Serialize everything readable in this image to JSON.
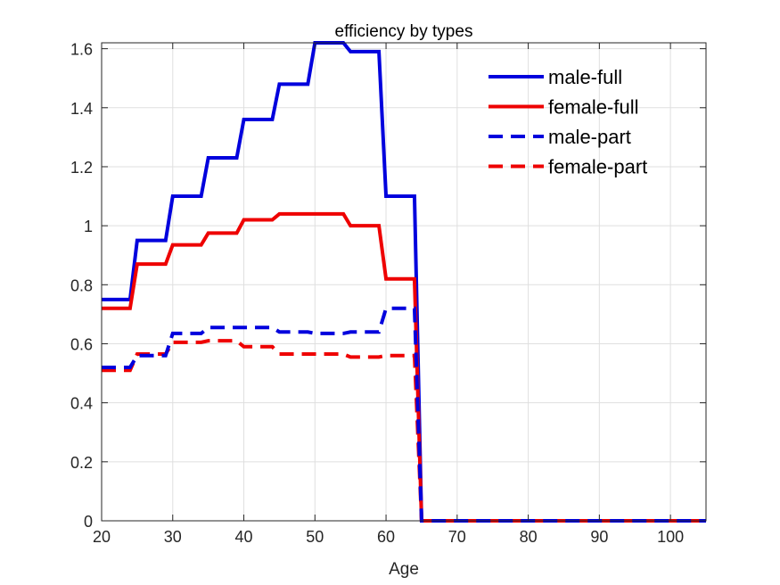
{
  "chart_data": {
    "type": "line",
    "title": "efficiency by types",
    "xlabel": "Age",
    "ylabel": "",
    "xlim": [
      20,
      105
    ],
    "ylim": [
      0,
      1.62
    ],
    "xticks": [
      20,
      30,
      40,
      50,
      60,
      70,
      80,
      90,
      100
    ],
    "yticks": [
      0,
      0.2,
      0.4,
      0.6,
      0.8,
      1.0,
      1.2,
      1.4,
      1.6
    ],
    "ytick_labels": [
      "0",
      "0.2",
      "0.4",
      "0.6",
      "0.8",
      "1",
      "1.2",
      "1.4",
      "1.6"
    ],
    "grid": true,
    "legend_position": "top-right",
    "series": [
      {
        "name": "male-full",
        "color": "#0000dd",
        "dash": "solid",
        "x": [
          20,
          24,
          25,
          29,
          30,
          34,
          35,
          39,
          40,
          44,
          45,
          49,
          50,
          54,
          55,
          59,
          60,
          64,
          65,
          105
        ],
        "y": [
          0.75,
          0.75,
          0.95,
          0.95,
          1.1,
          1.1,
          1.23,
          1.23,
          1.36,
          1.36,
          1.48,
          1.48,
          1.62,
          1.62,
          1.59,
          1.59,
          1.1,
          1.1,
          0,
          0
        ]
      },
      {
        "name": "female-full",
        "color": "#ee0000",
        "dash": "solid",
        "x": [
          20,
          24,
          25,
          29,
          30,
          34,
          35,
          39,
          40,
          44,
          45,
          49,
          50,
          54,
          55,
          59,
          60,
          64,
          65,
          105
        ],
        "y": [
          0.72,
          0.72,
          0.87,
          0.87,
          0.935,
          0.935,
          0.975,
          0.975,
          1.02,
          1.02,
          1.04,
          1.04,
          1.04,
          1.04,
          1.0,
          1.0,
          0.82,
          0.82,
          0,
          0
        ]
      },
      {
        "name": "male-part",
        "color": "#0000dd",
        "dash": "dashed",
        "x": [
          20,
          24,
          25,
          29,
          30,
          34,
          35,
          39,
          40,
          44,
          45,
          49,
          50,
          54,
          55,
          59,
          60,
          64,
          65,
          105
        ],
        "y": [
          0.52,
          0.52,
          0.56,
          0.56,
          0.635,
          0.635,
          0.655,
          0.655,
          0.655,
          0.655,
          0.64,
          0.64,
          0.635,
          0.635,
          0.64,
          0.64,
          0.72,
          0.72,
          0,
          0
        ]
      },
      {
        "name": "female-part",
        "color": "#ee0000",
        "dash": "dashed",
        "x": [
          20,
          24,
          25,
          29,
          30,
          34,
          35,
          39,
          40,
          44,
          45,
          49,
          50,
          54,
          55,
          59,
          60,
          64,
          65,
          105
        ],
        "y": [
          0.51,
          0.51,
          0.565,
          0.565,
          0.605,
          0.605,
          0.61,
          0.61,
          0.59,
          0.59,
          0.565,
          0.565,
          0.565,
          0.565,
          0.555,
          0.555,
          0.56,
          0.56,
          0,
          0
        ]
      }
    ]
  }
}
